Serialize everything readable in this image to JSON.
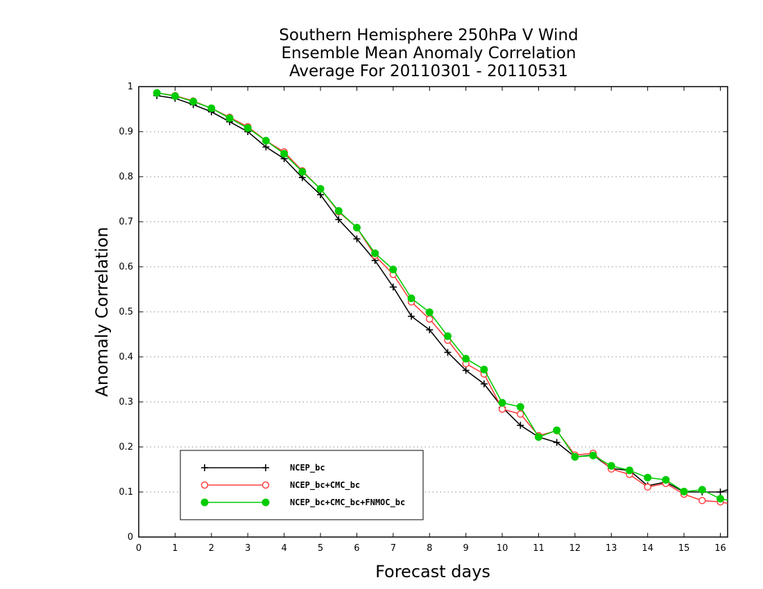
{
  "chart_data": {
    "type": "line",
    "title": [
      "Southern Hemisphere 250hPa V Wind",
      "Ensemble Mean Anomaly Correlation",
      "Average For 20110301 - 20110531"
    ],
    "xlabel": "Forecast days",
    "ylabel": "Anomaly Correlation",
    "xlim": [
      0,
      16.2
    ],
    "ylim": [
      0,
      1
    ],
    "x_ticks": [
      "0",
      "1",
      "2",
      "3",
      "4",
      "5",
      "6",
      "7",
      "8",
      "9",
      "10",
      "11",
      "12",
      "13",
      "14",
      "15",
      "16"
    ],
    "y_ticks": [
      "0",
      "0.1",
      "0.2",
      "0.3",
      "0.4",
      "0.5",
      "0.6",
      "0.7",
      "0.8",
      "0.9",
      "1"
    ],
    "grid": "horizontal-dotted",
    "legend_position": "bottom-left",
    "x": [
      0.5,
      1,
      1.5,
      2,
      2.5,
      3,
      3.5,
      4,
      4.5,
      5,
      5.5,
      6,
      6.5,
      7,
      7.5,
      8,
      8.5,
      9,
      9.5,
      10,
      10.5,
      11,
      11.5,
      12,
      12.5,
      13,
      13.5,
      14,
      14.5,
      15,
      15.5,
      16,
      16.2
    ],
    "series": [
      {
        "name": "NCEP_bc",
        "color": "#000000",
        "marker": "plus",
        "values": [
          0.98,
          0.974,
          0.96,
          0.944,
          0.922,
          0.9,
          0.866,
          0.84,
          0.798,
          0.76,
          0.705,
          0.662,
          0.614,
          0.555,
          0.49,
          0.46,
          0.41,
          0.37,
          0.34,
          0.288,
          0.248,
          0.222,
          0.21,
          0.178,
          0.182,
          0.152,
          0.148,
          0.114,
          0.122,
          0.1,
          0.1,
          0.1,
          0.105
        ]
      },
      {
        "name": "NCEP_bc+CMC_bc",
        "color": "#ff4040",
        "marker": "open-circle",
        "values": [
          0.986,
          0.98,
          0.968,
          0.952,
          0.932,
          0.911,
          0.88,
          0.855,
          0.813,
          0.773,
          0.722,
          0.687,
          0.625,
          0.583,
          0.522,
          0.484,
          0.437,
          0.385,
          0.362,
          0.284,
          0.273,
          0.225,
          0.236,
          0.182,
          0.186,
          0.151,
          0.139,
          0.111,
          0.119,
          0.095,
          0.081,
          0.078,
          0.075
        ]
      },
      {
        "name": "NCEP_bc+CMC_bc+FNMOC_bc",
        "color": "#00cc00",
        "marker": "filled-circle",
        "values": [
          0.986,
          0.979,
          0.967,
          0.952,
          0.93,
          0.908,
          0.88,
          0.851,
          0.811,
          0.773,
          0.724,
          0.687,
          0.63,
          0.594,
          0.53,
          0.499,
          0.446,
          0.396,
          0.372,
          0.298,
          0.289,
          0.222,
          0.237,
          0.178,
          0.181,
          0.158,
          0.148,
          0.132,
          0.127,
          0.101,
          0.105,
          0.085,
          0.082
        ]
      }
    ]
  }
}
